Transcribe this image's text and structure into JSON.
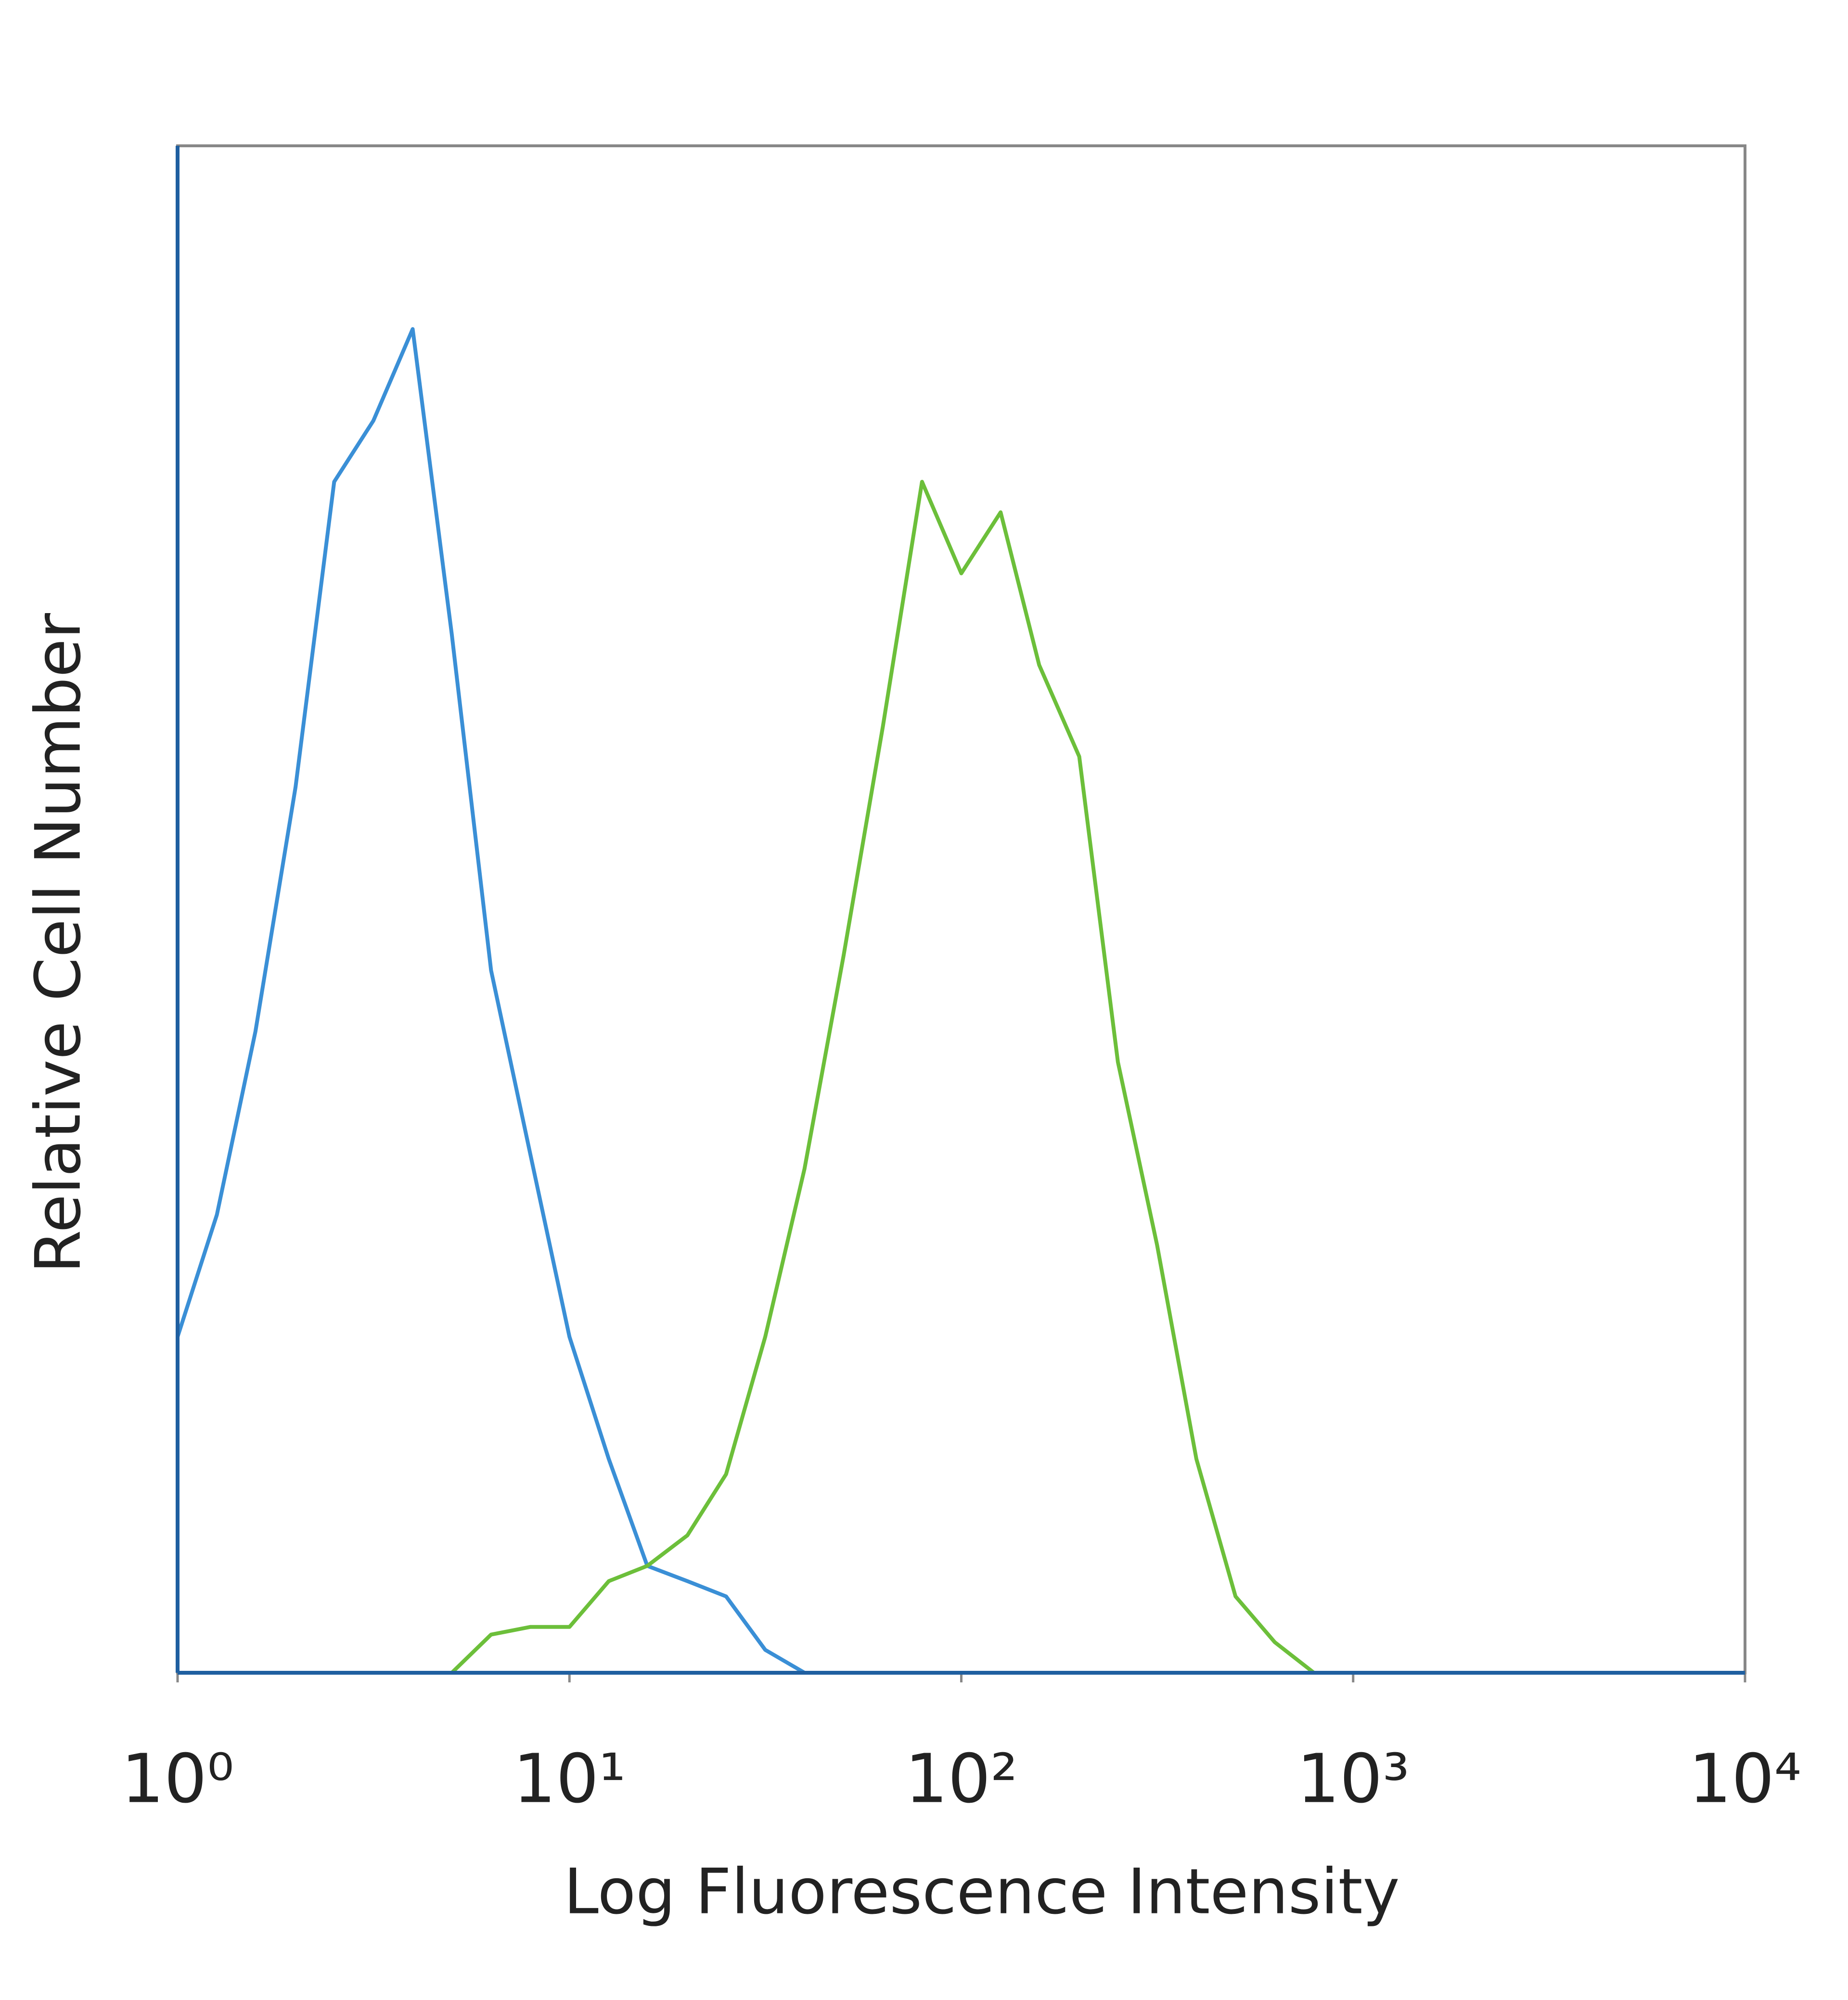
{
  "chart_data": {
    "type": "line",
    "x_label": "Log Fluorescence Intensity",
    "y_label": "Relative Cell Number",
    "x_scale": "log",
    "xlim": [
      1,
      10000
    ],
    "xticks": [
      {
        "value": 1,
        "label": "10⁰"
      },
      {
        "value": 10,
        "label": "10¹"
      },
      {
        "value": 100,
        "label": "10²"
      },
      {
        "value": 1000,
        "label": "10³"
      },
      {
        "value": 10000,
        "label": "10⁴"
      }
    ],
    "ylim": [
      0,
      100
    ],
    "x": [
      1,
      1.26,
      1.58,
      2,
      2.51,
      3.16,
      3.98,
      5.01,
      6.31,
      7.94,
      10,
      12.6,
      15.8,
      20,
      25.1,
      31.6,
      39.8,
      50.1,
      63.1,
      79.4,
      100,
      126,
      158,
      200,
      251,
      316,
      398,
      501,
      631,
      794,
      1000
    ],
    "series": [
      {
        "color": "#3a8fd6",
        "values": [
          22,
          30,
          42,
          58,
          78,
          82,
          88,
          68,
          46,
          34,
          22,
          14,
          7,
          6,
          5,
          1.5,
          0,
          0,
          0,
          0,
          0,
          0,
          0,
          0,
          0,
          0,
          0,
          0,
          0,
          0,
          0
        ]
      },
      {
        "color": "#6cbf3a",
        "values": [
          0,
          0,
          0,
          0,
          0,
          0,
          0,
          0,
          2.5,
          3,
          3,
          6,
          7,
          9,
          13,
          22,
          33,
          47,
          62,
          78,
          72,
          76,
          66,
          60,
          40,
          28,
          14,
          5,
          2,
          0,
          0
        ]
      }
    ]
  }
}
